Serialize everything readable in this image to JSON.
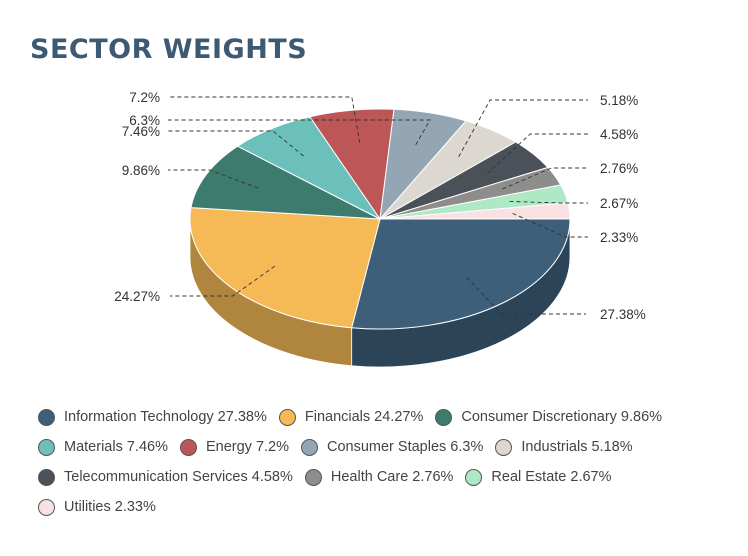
{
  "title": "SECTOR WEIGHTS",
  "chart_data": {
    "type": "pie",
    "style": "3d",
    "categories": [
      "Information Technology",
      "Financials",
      "Consumer Discretionary",
      "Materials",
      "Energy",
      "Consumer Staples",
      "Industrials",
      "Telecommunication Services",
      "Health Care",
      "Real Estate",
      "Utilities"
    ],
    "values": [
      27.38,
      24.27,
      9.86,
      7.46,
      7.2,
      6.3,
      5.18,
      4.58,
      2.76,
      2.67,
      2.33
    ],
    "data_labels": [
      "27.38%",
      "24.27%",
      "9.86%",
      "7.46%",
      "7.2%",
      "6.3%",
      "5.18%",
      "4.58%",
      "2.76%",
      "2.67%",
      "2.33%"
    ],
    "colors": [
      "#3d5f7a",
      "#f5b955",
      "#3e7b6f",
      "#6bc0bb",
      "#bd5656",
      "#94a6b3",
      "#dcd7d0",
      "#4a5159",
      "#8d8d8b",
      "#aee8c5",
      "#f8e1e2"
    ],
    "legend_position": "bottom"
  },
  "legend": [
    [
      {
        "label": "Information Technology 27.38%",
        "color": "#3d5f7a"
      },
      {
        "label": "Financials 24.27%",
        "color": "#f5b955"
      },
      {
        "label": "Consumer Discretionary 9.86%",
        "color": "#3e7b6f"
      }
    ],
    [
      {
        "label": "Materials 7.46%",
        "color": "#6bc0bb"
      },
      {
        "label": "Energy 7.2%",
        "color": "#bd5656"
      },
      {
        "label": "Consumer Staples 6.3%",
        "color": "#94a6b3"
      },
      {
        "label": "Industrials 5.18%",
        "color": "#dcd7d0"
      }
    ],
    [
      {
        "label": "Telecommunication Services 4.58%",
        "color": "#4a5159"
      },
      {
        "label": "Health Care 2.76%",
        "color": "#8d8d8b"
      },
      {
        "label": "Real Estate 2.67%",
        "color": "#aee8c5"
      }
    ],
    [
      {
        "label": "Utilities 2.33%",
        "color": "#f8e1e2"
      }
    ]
  ]
}
